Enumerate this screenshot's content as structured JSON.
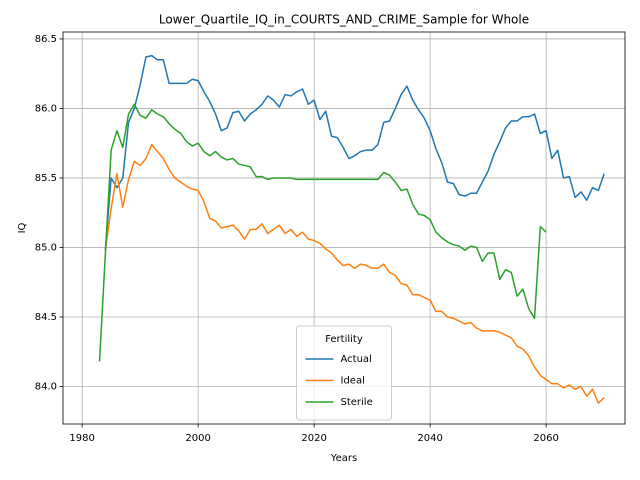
{
  "chart_data": {
    "type": "line",
    "title": "Lower_Quartile_IQ_in_COURTS_AND_CRIME_Sample for Whole",
    "x_label": "Years",
    "y_label": "IQ",
    "legend_title": "Fertility",
    "legend": "lower center",
    "grid": true,
    "xlim": [
      1976.7,
      2073.6
    ],
    "xticks": [
      1980,
      2000,
      2020,
      2040,
      2060
    ],
    "ylim": [
      83.73,
      86.55
    ],
    "yticks": [
      {
        "value": 84,
        "label": "84.0"
      },
      84.5,
      {
        "value": 85,
        "label": "85.0"
      },
      85.5,
      {
        "value": 86,
        "label": "86.0"
      },
      86.5
    ],
    "x": [
      1983,
      1984,
      1985,
      1986,
      1987,
      1988,
      1989,
      1990,
      1991,
      1992,
      1993,
      1994,
      1995,
      1996,
      1997,
      1998,
      1999,
      2000,
      2001,
      2002,
      2003,
      2004,
      2005,
      2006,
      2007,
      2008,
      2009,
      2010,
      2011,
      2012,
      2013,
      2014,
      2015,
      2016,
      2017,
      2018,
      2019,
      2020,
      2021,
      2022,
      2023,
      2024,
      2025,
      2026,
      2027,
      2028,
      2029,
      2030,
      2031,
      2032,
      2033,
      2034,
      2035,
      2036,
      2037,
      2038,
      2039,
      2040,
      2041,
      2042,
      2043,
      2044,
      2045,
      2046,
      2047,
      2048,
      2049,
      2050,
      2051,
      2052,
      2053,
      2054,
      2055,
      2056,
      2057,
      2058,
      2059,
      2060,
      2061,
      2062,
      2063,
      2064,
      2065,
      2066,
      2067,
      2068,
      2069,
      2070
    ],
    "series": [
      {
        "name": "Actual",
        "color": "#1f77b4",
        "values": [
          null,
          84.98,
          85.5,
          85.43,
          85.5,
          85.9,
          86.0,
          86.17,
          86.37,
          86.38,
          86.35,
          86.35,
          86.18,
          86.18,
          86.18,
          86.18,
          86.21,
          86.2,
          86.12,
          86.05,
          85.96,
          85.84,
          85.86,
          85.97,
          85.98,
          85.91,
          85.96,
          85.99,
          86.03,
          86.09,
          86.06,
          86.01,
          86.1,
          86.09,
          86.12,
          86.14,
          86.03,
          86.06,
          85.92,
          85.98,
          85.8,
          85.79,
          85.72,
          85.64,
          85.66,
          85.69,
          85.7,
          85.7,
          85.74,
          85.9,
          85.91,
          86.0,
          86.1,
          86.16,
          86.06,
          85.99,
          85.93,
          85.84,
          85.71,
          85.61,
          85.47,
          85.46,
          85.38,
          85.37,
          85.39,
          85.39,
          85.47,
          85.55,
          85.67,
          85.76,
          85.86,
          85.91,
          85.91,
          85.94,
          85.94,
          85.96,
          85.82,
          85.84,
          85.64,
          85.7,
          85.5,
          85.51,
          85.36,
          85.4,
          85.34,
          85.43,
          85.41,
          85.53
        ]
      },
      {
        "name": "Ideal",
        "color": "#ff7f0e",
        "values": [
          null,
          84.98,
          85.28,
          85.53,
          85.29,
          85.49,
          85.62,
          85.59,
          85.64,
          85.74,
          85.69,
          85.64,
          85.56,
          85.5,
          85.47,
          85.44,
          85.42,
          85.41,
          85.33,
          85.21,
          85.19,
          85.14,
          85.15,
          85.16,
          85.12,
          85.06,
          85.13,
          85.13,
          85.17,
          85.1,
          85.13,
          85.16,
          85.1,
          85.13,
          85.08,
          85.11,
          85.06,
          85.05,
          85.03,
          84.99,
          84.96,
          84.91,
          84.87,
          84.88,
          84.85,
          84.88,
          84.87,
          84.85,
          84.85,
          84.88,
          84.82,
          84.8,
          84.74,
          84.73,
          84.66,
          84.66,
          84.64,
          84.62,
          84.54,
          84.54,
          84.5,
          84.49,
          84.47,
          84.45,
          84.46,
          84.42,
          84.4,
          84.4,
          84.4,
          84.39,
          84.37,
          84.35,
          84.29,
          84.27,
          84.22,
          84.14,
          84.08,
          84.05,
          84.02,
          84.02,
          83.99,
          84.01,
          83.98,
          84.0,
          83.93,
          83.98,
          83.88,
          83.92
        ]
      },
      {
        "name": "Sterile",
        "color": "#2ca02c",
        "values": [
          84.18,
          84.95,
          85.7,
          85.84,
          85.72,
          85.96,
          86.03,
          85.95,
          85.93,
          85.99,
          85.96,
          85.94,
          85.89,
          85.85,
          85.82,
          85.76,
          85.73,
          85.75,
          85.69,
          85.66,
          85.69,
          85.65,
          85.63,
          85.64,
          85.6,
          85.59,
          85.58,
          85.51,
          85.51,
          85.49,
          85.5,
          85.5,
          85.5,
          85.5,
          85.49,
          85.49,
          85.49,
          85.49,
          85.49,
          85.49,
          85.49,
          85.49,
          85.49,
          85.49,
          85.49,
          85.49,
          85.49,
          85.49,
          85.49,
          85.54,
          85.52,
          85.47,
          85.41,
          85.42,
          85.31,
          85.24,
          85.23,
          85.2,
          85.11,
          85.07,
          85.04,
          85.02,
          85.01,
          84.98,
          85.01,
          85.0,
          84.9,
          84.96,
          84.96,
          84.77,
          84.84,
          84.82,
          84.65,
          84.7,
          84.56,
          84.49,
          85.15,
          85.11,
          null,
          null,
          null,
          null,
          null,
          null,
          null,
          null,
          null,
          null
        ]
      }
    ]
  }
}
